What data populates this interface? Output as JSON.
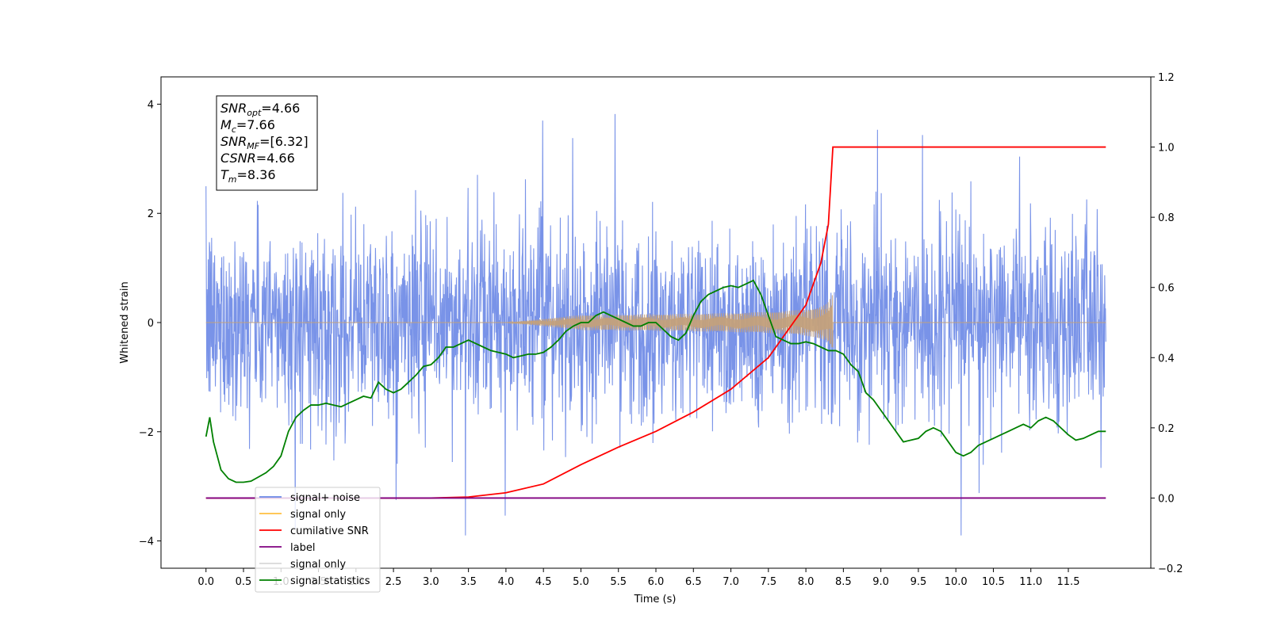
{
  "chart_data": {
    "type": "line",
    "xlabel": "Time (s)",
    "ylabel": "Whitened strain",
    "xlim": [
      -0.6,
      12.6
    ],
    "ylim": [
      -4.5,
      4.5
    ],
    "y2lim": [
      -0.2,
      1.2
    ],
    "x_ticks": [
      "0.0",
      "0.5",
      "1.0",
      "1.5",
      "2.0",
      "2.5",
      "3.0",
      "3.5",
      "4.0",
      "4.5",
      "5.0",
      "5.5",
      "6.0",
      "6.5",
      "7.0",
      "7.5",
      "8.0",
      "8.5",
      "9.0",
      "9.5",
      "10.0",
      "10.5",
      "11.0",
      "11.5"
    ],
    "y_ticks": [
      "4",
      "2",
      "0",
      "−2",
      "−4"
    ],
    "y2_ticks": [
      "1.2",
      "1.0",
      "0.8",
      "0.6",
      "0.4",
      "0.2",
      "0.0",
      "−0.2"
    ],
    "annotation": {
      "lines": [
        {
          "var": "SNR",
          "sub": "opt",
          "value": "=4.66"
        },
        {
          "var": "M",
          "sub": "c",
          "value": "=7.66"
        },
        {
          "var": "SNR",
          "sub": "MF",
          "value": "=[6.32]"
        },
        {
          "var": "CSNR",
          "sub": "",
          "value": "=4.66"
        },
        {
          "var": "T",
          "sub": "m",
          "value": "=8.36"
        }
      ]
    },
    "legend_position": "lower-left",
    "series": [
      {
        "name": "signal+ noise",
        "axis": "left",
        "color": "#6a87e6",
        "kind": "noise",
        "x_range": [
          0,
          12
        ],
        "amplitude_sd": 0.9
      },
      {
        "name": "signal only",
        "axis": "left",
        "color": "#ffbf40",
        "kind": "chirp",
        "x_range": [
          0,
          12
        ],
        "merger_time": 8.36,
        "peak_amplitude": 0.5
      },
      {
        "name": "cumilative SNR",
        "axis": "right",
        "color": "#ff0000",
        "x": [
          0,
          3.0,
          3.5,
          4.0,
          4.5,
          5.0,
          5.5,
          6.0,
          6.5,
          7.0,
          7.5,
          8.0,
          8.2,
          8.3,
          8.36,
          12
        ],
        "y": [
          0,
          0,
          0.003,
          0.015,
          0.04,
          0.095,
          0.145,
          0.19,
          0.245,
          0.31,
          0.4,
          0.55,
          0.67,
          0.78,
          1.0,
          1.0
        ]
      },
      {
        "name": "label",
        "axis": "right",
        "color": "#800080",
        "x": [
          0,
          12
        ],
        "y": [
          0,
          0
        ]
      },
      {
        "name": "signal only",
        "axis": "right",
        "color": "#d8d8d8",
        "hidden_behind": true,
        "x": [],
        "y": []
      },
      {
        "name": "signal statistics",
        "axis": "right",
        "color": "#008000",
        "x": [
          0,
          0.05,
          0.1,
          0.2,
          0.3,
          0.4,
          0.5,
          0.6,
          0.7,
          0.8,
          0.9,
          1.0,
          1.1,
          1.2,
          1.3,
          1.4,
          1.5,
          1.6,
          1.7,
          1.8,
          1.9,
          2.0,
          2.1,
          2.2,
          2.3,
          2.4,
          2.5,
          2.6,
          2.7,
          2.8,
          2.9,
          3.0,
          3.1,
          3.2,
          3.3,
          3.4,
          3.5,
          3.6,
          3.7,
          3.8,
          3.9,
          4.0,
          4.1,
          4.2,
          4.3,
          4.4,
          4.5,
          4.6,
          4.7,
          4.8,
          4.9,
          5.0,
          5.1,
          5.2,
          5.3,
          5.4,
          5.5,
          5.6,
          5.7,
          5.8,
          5.9,
          6.0,
          6.1,
          6.2,
          6.3,
          6.4,
          6.5,
          6.6,
          6.7,
          6.8,
          6.9,
          7.0,
          7.1,
          7.2,
          7.3,
          7.4,
          7.5,
          7.6,
          7.7,
          7.8,
          7.9,
          8.0,
          8.1,
          8.2,
          8.3,
          8.4,
          8.5,
          8.6,
          8.7,
          8.8,
          8.9,
          9.0,
          9.1,
          9.2,
          9.3,
          9.4,
          9.5,
          9.6,
          9.7,
          9.8,
          9.9,
          10.0,
          10.1,
          10.2,
          10.3,
          10.4,
          10.5,
          10.6,
          10.7,
          10.8,
          10.9,
          11.0,
          11.1,
          11.2,
          11.3,
          11.4,
          11.5,
          11.6,
          11.7,
          11.8,
          11.9,
          12.0
        ],
        "y": [
          0.175,
          0.23,
          0.16,
          0.08,
          0.055,
          0.045,
          0.045,
          0.048,
          0.06,
          0.072,
          0.09,
          0.12,
          0.19,
          0.23,
          0.25,
          0.265,
          0.265,
          0.27,
          0.265,
          0.26,
          0.27,
          0.28,
          0.29,
          0.285,
          0.33,
          0.31,
          0.3,
          0.31,
          0.33,
          0.35,
          0.375,
          0.38,
          0.4,
          0.43,
          0.43,
          0.44,
          0.45,
          0.44,
          0.43,
          0.42,
          0.415,
          0.41,
          0.4,
          0.405,
          0.41,
          0.41,
          0.415,
          0.43,
          0.45,
          0.475,
          0.49,
          0.5,
          0.5,
          0.52,
          0.53,
          0.52,
          0.51,
          0.5,
          0.49,
          0.49,
          0.5,
          0.5,
          0.48,
          0.46,
          0.45,
          0.47,
          0.52,
          0.56,
          0.58,
          0.59,
          0.6,
          0.605,
          0.6,
          0.61,
          0.62,
          0.58,
          0.52,
          0.46,
          0.45,
          0.44,
          0.44,
          0.445,
          0.44,
          0.43,
          0.42,
          0.42,
          0.41,
          0.38,
          0.36,
          0.3,
          0.28,
          0.25,
          0.22,
          0.19,
          0.16,
          0.165,
          0.17,
          0.19,
          0.2,
          0.19,
          0.16,
          0.13,
          0.12,
          0.13,
          0.15,
          0.16,
          0.17,
          0.18,
          0.19,
          0.2,
          0.21,
          0.2,
          0.22,
          0.23,
          0.22,
          0.2,
          0.18,
          0.165,
          0.17,
          0.18,
          0.19,
          0.19
        ]
      }
    ]
  }
}
